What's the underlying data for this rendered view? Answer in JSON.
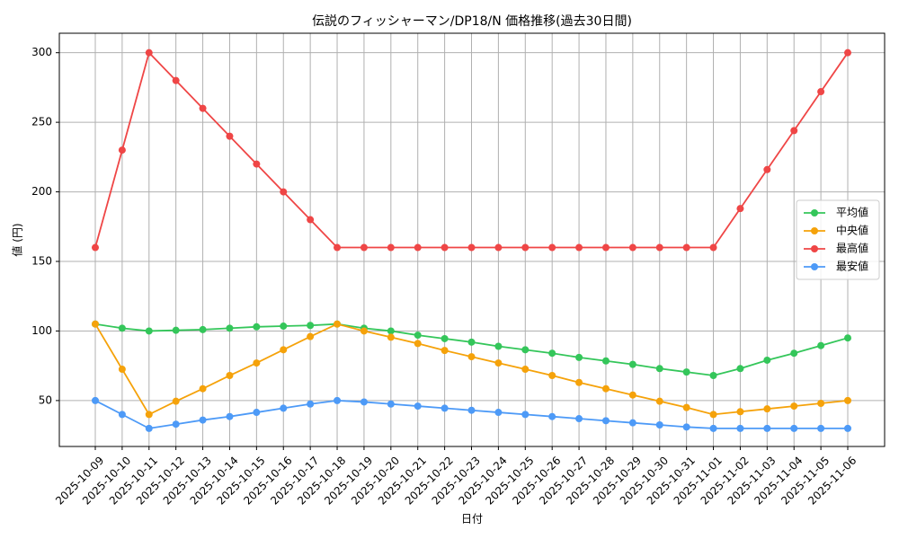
{
  "chart_data": {
    "type": "line",
    "title": "伝説のフィッシャーマン/DP18/N 価格推移(過去30日間)",
    "x_label": "日付",
    "y_label": "値 (円)",
    "categories": [
      "2025-10-09",
      "2025-10-10",
      "2025-10-11",
      "2025-10-12",
      "2025-10-13",
      "2025-10-14",
      "2025-10-15",
      "2025-10-16",
      "2025-10-17",
      "2025-10-18",
      "2025-10-19",
      "2025-10-20",
      "2025-10-21",
      "2025-10-22",
      "2025-10-23",
      "2025-10-24",
      "2025-10-25",
      "2025-10-26",
      "2025-10-27",
      "2025-10-28",
      "2025-10-29",
      "2025-10-30",
      "2025-10-31",
      "2025-11-01",
      "2025-11-02",
      "2025-11-03",
      "2025-11-04",
      "2025-11-05",
      "2025-11-06"
    ],
    "series": [
      {
        "name": "平均値",
        "color": "#34c65a",
        "values": [
          105,
          102,
          100,
          100.5,
          101,
          102,
          103,
          103.5,
          104,
          105,
          102,
          100,
          97,
          94.5,
          92,
          89,
          86.5,
          84,
          81,
          78.5,
          76,
          73,
          70.5,
          68,
          73,
          79,
          84,
          89.5,
          95
        ]
      },
      {
        "name": "中央値",
        "color": "#f5a20a",
        "values": [
          105,
          72.5,
          40,
          49.5,
          58.5,
          68,
          77,
          86.5,
          96,
          105,
          100,
          95.5,
          91,
          86,
          81.5,
          77,
          72.5,
          68,
          63,
          58.5,
          54,
          49.5,
          45,
          40,
          42,
          44,
          46,
          48,
          50
        ]
      },
      {
        "name": "最高値",
        "color": "#ef4646",
        "values": [
          160,
          230,
          300,
          280,
          260,
          240,
          220,
          200,
          180,
          160,
          160,
          160,
          160,
          160,
          160,
          160,
          160,
          160,
          160,
          160,
          160,
          160,
          160,
          160,
          188,
          216,
          244,
          272,
          300
        ]
      },
      {
        "name": "最安値",
        "color": "#4d9af7",
        "values": [
          50,
          40,
          30,
          33,
          36,
          38.5,
          41.5,
          44.5,
          47.5,
          50,
          49,
          47.5,
          46,
          44.5,
          43,
          41.5,
          40,
          38.5,
          37,
          35.5,
          34,
          32.5,
          31,
          30,
          30,
          30,
          30,
          30,
          30
        ]
      }
    ],
    "ylim": [
      17,
      314
    ],
    "yticks": [
      50,
      100,
      150,
      200,
      250,
      300
    ],
    "grid": true,
    "legend": "right"
  }
}
